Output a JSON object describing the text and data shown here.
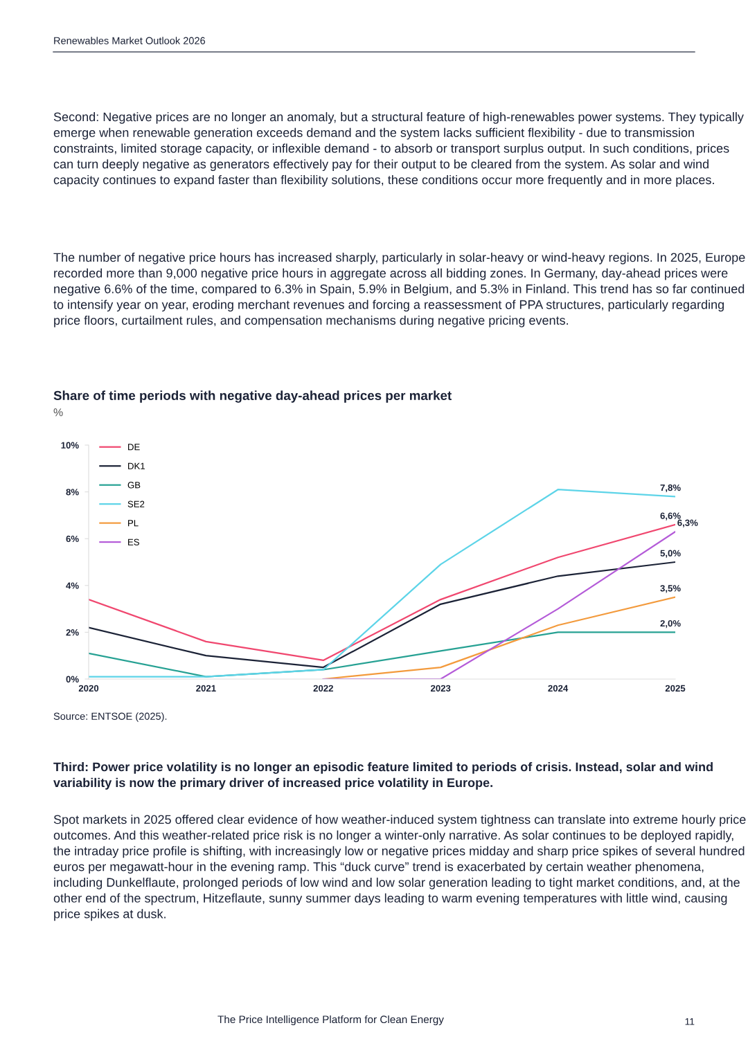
{
  "chart_data": {
    "type": "line",
    "title": "Share of time periods with negative day-ahead prices per market",
    "subtitle": "%",
    "categories": [
      "2020",
      "2021",
      "2022",
      "2023",
      "2024",
      "2025"
    ],
    "series": [
      {
        "name": "DE",
        "color": "#f0476f",
        "values": [
          3.4,
          1.6,
          0.8,
          3.4,
          5.2,
          6.6
        ],
        "value_labels": [
          null,
          null,
          null,
          null,
          null,
          "6,6%"
        ]
      },
      {
        "name": "DK1",
        "color": "#1b2236",
        "values": [
          2.2,
          1.0,
          0.5,
          3.2,
          4.4,
          5.0
        ],
        "value_labels": [
          null,
          null,
          null,
          null,
          null,
          "5,0%"
        ]
      },
      {
        "name": "GB",
        "color": "#26a193",
        "values": [
          1.1,
          0.1,
          0.4,
          1.2,
          2.0,
          2.0
        ],
        "value_labels": [
          null,
          null,
          null,
          null,
          null,
          "2,0%"
        ]
      },
      {
        "name": "SE2",
        "color": "#5dd4e8",
        "values": [
          0.1,
          0.1,
          0.4,
          4.9,
          8.1,
          7.8
        ],
        "value_labels": [
          null,
          null,
          null,
          null,
          null,
          "7,8%"
        ]
      },
      {
        "name": "PL",
        "color": "#f39a3c",
        "values": [
          null,
          null,
          0.0,
          0.5,
          2.3,
          3.5
        ],
        "value_labels": [
          null,
          null,
          null,
          null,
          null,
          "3,5%"
        ]
      },
      {
        "name": "ES",
        "color": "#b45bd8",
        "values": [
          null,
          null,
          0.0,
          0.0,
          3.0,
          6.3
        ],
        "value_labels": [
          null,
          null,
          null,
          null,
          null,
          "6,3%"
        ]
      }
    ],
    "ylim": [
      0,
      10
    ],
    "yticks": [
      {
        "value": 0,
        "label": "0%"
      },
      {
        "value": 2,
        "label": "2%"
      },
      {
        "value": 4,
        "label": "4%"
      },
      {
        "value": 6,
        "label": "6%"
      },
      {
        "value": 8,
        "label": "8%"
      },
      {
        "value": 10,
        "label": "10%"
      }
    ],
    "grid": false,
    "legend": "top left",
    "marker": "none",
    "line_style": "solid",
    "annotations": [
      "Renewables Market Outlook 2026",
      "Second: Negative prices are no longer an anomaly, but a structural feature of high-renewables power systems. They typically emerge when renewable generation exceeds demand and the system lacks sufficient flexibility - due to transmission constraints, limited storage capacity, or inflexible demand - to absorb or transport surplus output. In such conditions, prices can turn deeply negative as generators effectively pay for their output to be cleared from the system. As solar and wind capacity continues to expand faster than flexibility solutions, these conditions occur more frequently and in more places.",
      "The number of negative price hours has increased sharply, particularly in solar-heavy or wind-heavy regions. In 2025, Europe recorded more than 9,000 negative price hours in aggregate across all bidding zones. In Germany, day-ahead prices were negative 6.6% of the time, compared to 6.3% in Spain, 5.9% in Belgium, and 5.3% in Finland. This trend has so far continued to intensify year on year, eroding merchant revenues and forcing a reassessment of PPA structures, particularly regarding price floors, curtailment rules, and compensation mechanisms during negative pricing events.",
      "Source: ENTSOE (2025).",
      "Third: Power price volatility is no longer an episodic feature limited to periods of crisis. Instead, solar and wind variability is now the primary driver of increased price volatility in Europe.",
      "Spot markets in 2025 offered clear evidence of how weather-induced system tightness can translate into extreme hourly price outcomes. And this weather-related price risk is no longer a winter-only narrative. As solar continues to be deployed rapidly, the intraday price profile is shifting, with increasingly low or negative prices midday and sharp price spikes of several hundred euros per megawatt-hour in the evening ramp. This “duck curve” trend is exacerbated by certain weather phenomena, including Dunkelflaute, prolonged periods of low wind and low solar generation leading to tight market conditions, and, at the other end of the spectrum, Hitzeflaute, sunny summer days leading to warm evening temperatures with little wind, causing price spikes at dusk.",
      "The Price Intelligence Platform for Clean Energy",
      "11"
    ]
  }
}
